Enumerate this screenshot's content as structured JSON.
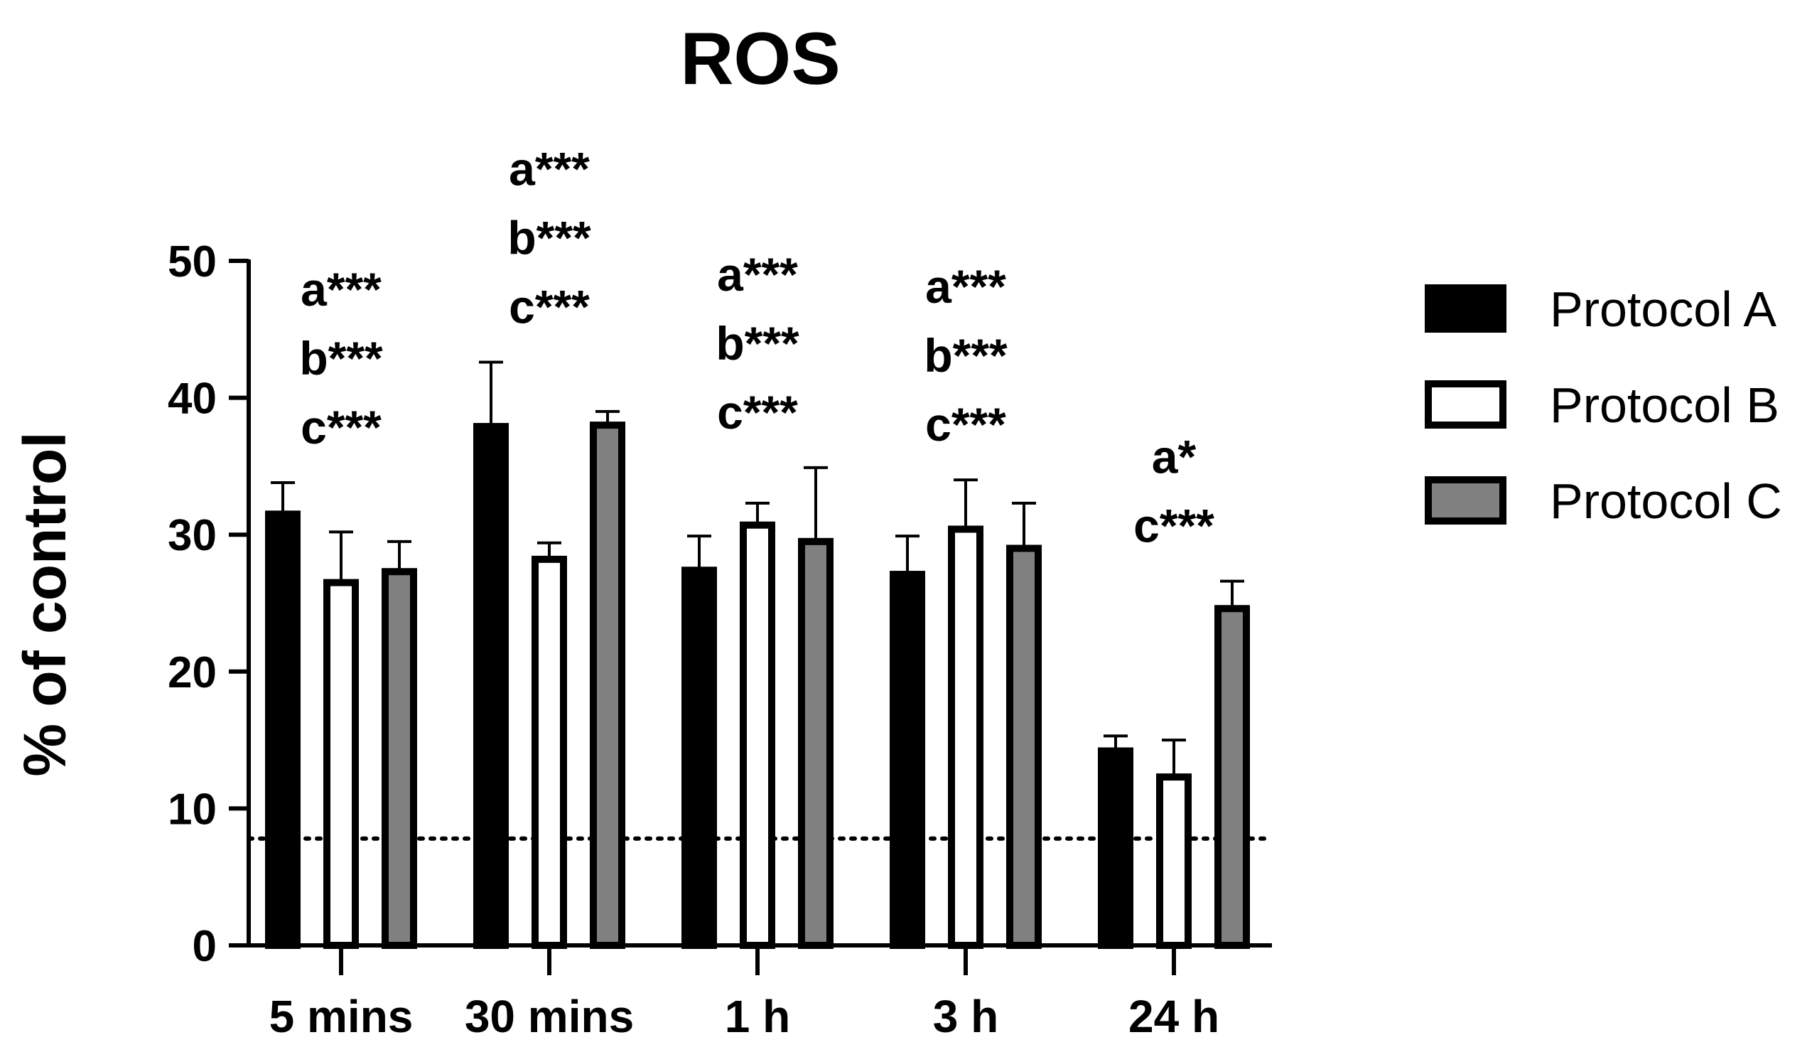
{
  "chart_data": {
    "type": "bar",
    "title": "ROS",
    "xlabel": "",
    "ylabel": "% of control",
    "ylim": [
      0,
      50
    ],
    "yticks": [
      0,
      10,
      20,
      30,
      40,
      50
    ],
    "categories": [
      "5 mins",
      "30 mins",
      "1 h",
      "3 h",
      "24 h"
    ],
    "series": [
      {
        "name": "Protocol A",
        "color": "#000000",
        "values": [
          31.5,
          37.9,
          27.4,
          27.1,
          14.2
        ],
        "errors": [
          2.3,
          4.7,
          2.5,
          2.8,
          1.1
        ]
      },
      {
        "name": "Protocol B",
        "color": "#ffffff",
        "values": [
          26.5,
          28.2,
          30.7,
          30.4,
          12.3
        ],
        "errors": [
          3.7,
          1.2,
          1.6,
          3.6,
          2.7
        ]
      },
      {
        "name": "Protocol C",
        "color": "#808080",
        "values": [
          27.3,
          38.0,
          29.5,
          29.0,
          24.6
        ],
        "errors": [
          2.2,
          1.0,
          5.4,
          3.3,
          2.0
        ]
      }
    ],
    "reference_line": {
      "value": 7.8,
      "style": "dotted"
    },
    "annotations": [
      {
        "category": "5 mins",
        "lines": [
          "a***",
          "b***",
          "c***"
        ]
      },
      {
        "category": "30 mins",
        "lines": [
          "a***",
          "b***",
          "c***"
        ]
      },
      {
        "category": "1 h",
        "lines": [
          "a***",
          "b***",
          "c***"
        ]
      },
      {
        "category": "3 h",
        "lines": [
          "a***",
          "b***",
          "c***"
        ]
      },
      {
        "category": "24 h",
        "lines": [
          "a*",
          "c***"
        ]
      }
    ],
    "legend": {
      "position": "right",
      "entries": [
        "Protocol A",
        "Protocol B",
        "Protocol C"
      ]
    }
  }
}
